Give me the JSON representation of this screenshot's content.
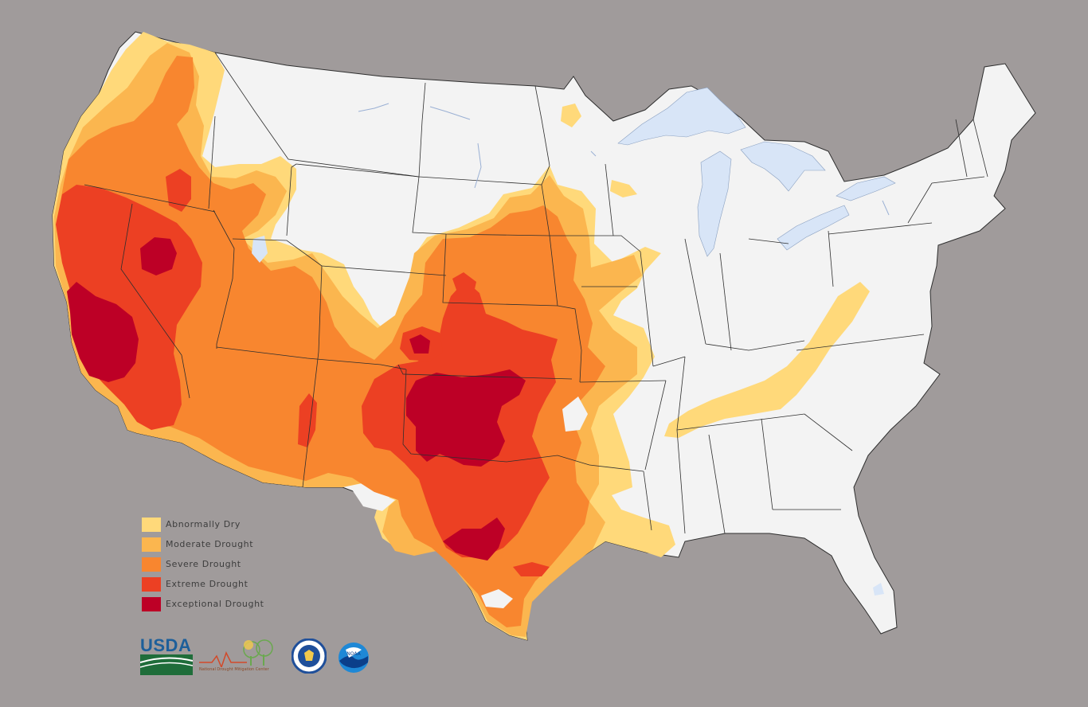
{
  "legend": {
    "items": [
      {
        "label": "Abnormally Dry",
        "color": "#ffd97a"
      },
      {
        "label": "Moderate Drought",
        "color": "#fbb64f"
      },
      {
        "label": "Severe Drought",
        "color": "#f8862f"
      },
      {
        "label": "Extreme Drought",
        "color": "#ec4023"
      },
      {
        "label": "Exceptional Drought",
        "color": "#bd0026"
      }
    ]
  },
  "colors": {
    "background": "#a09b9b",
    "land": "#f3f3f3",
    "water": "#d8e5f7",
    "border": "#333333"
  },
  "logos": {
    "usda": {
      "text": "USDA",
      "icon": "usda-logo"
    },
    "ndmc": {
      "text": "National Drought Mitigation Center",
      "icon": "ndmc-logo"
    },
    "doc": {
      "icon": "commerce-seal"
    },
    "noaa": {
      "text": "NOAA",
      "icon": "noaa-logo"
    }
  }
}
